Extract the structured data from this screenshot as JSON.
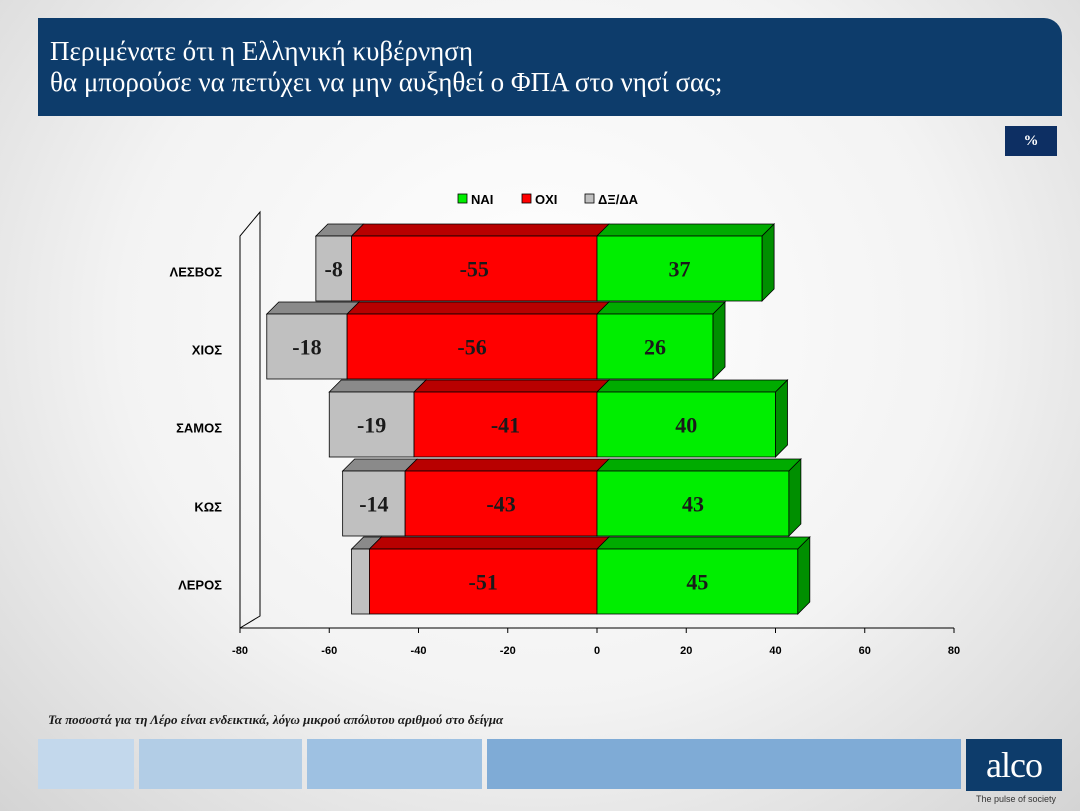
{
  "title": {
    "line1": "Περιμένατε ότι η Ελληνική κυβέρνηση",
    "line2": "θα μπορούσε να πετύχει να μην αυξηθεί ο ΦΠΑ στο νησί σας;"
  },
  "percent_badge": "%",
  "footnote": "Τα ποσοστά για τη Λέρο είναι ενδεικτικά, λόγω μικρού απόλυτου αριθμού στο δείγμα",
  "logo": {
    "text": "alco",
    "tagline": "The pulse of society"
  },
  "colors": {
    "title_bg": "#0d3c6b",
    "yes": "#00ee00",
    "no": "#ff0000",
    "dk": "#c0c0c0"
  },
  "chart_data": {
    "type": "bar",
    "orientation": "horizontal",
    "stacked": true,
    "categories": [
      "ΛΕΣΒΟΣ",
      "ΧΙΟΣ",
      "ΣΑΜΟΣ",
      "ΚΩΣ",
      "ΛΕΡΟΣ"
    ],
    "series": [
      {
        "name": "ΝΑΙ",
        "color": "#00ee00",
        "values": [
          37,
          26,
          40,
          43,
          45
        ],
        "labels": [
          "37",
          "26",
          "40",
          "43",
          "45"
        ]
      },
      {
        "name": "ΟΧΙ",
        "color": "#ff0000",
        "values": [
          -55,
          -56,
          -41,
          -43,
          -51
        ],
        "labels": [
          "-55",
          "-56",
          "-41",
          "-43",
          "-51"
        ]
      },
      {
        "name": "ΔΞ/ΔΑ",
        "color": "#c0c0c0",
        "values": [
          -8,
          -18,
          -19,
          -14,
          -4
        ],
        "labels": [
          "-8",
          "-18",
          "-19",
          "-14",
          ""
        ]
      }
    ],
    "xlim": [
      -80,
      80
    ],
    "xticks": [
      "-80",
      "-60",
      "-40",
      "-20",
      "0",
      "20",
      "40",
      "60",
      "80"
    ],
    "legend_position": "top",
    "grid": false
  }
}
